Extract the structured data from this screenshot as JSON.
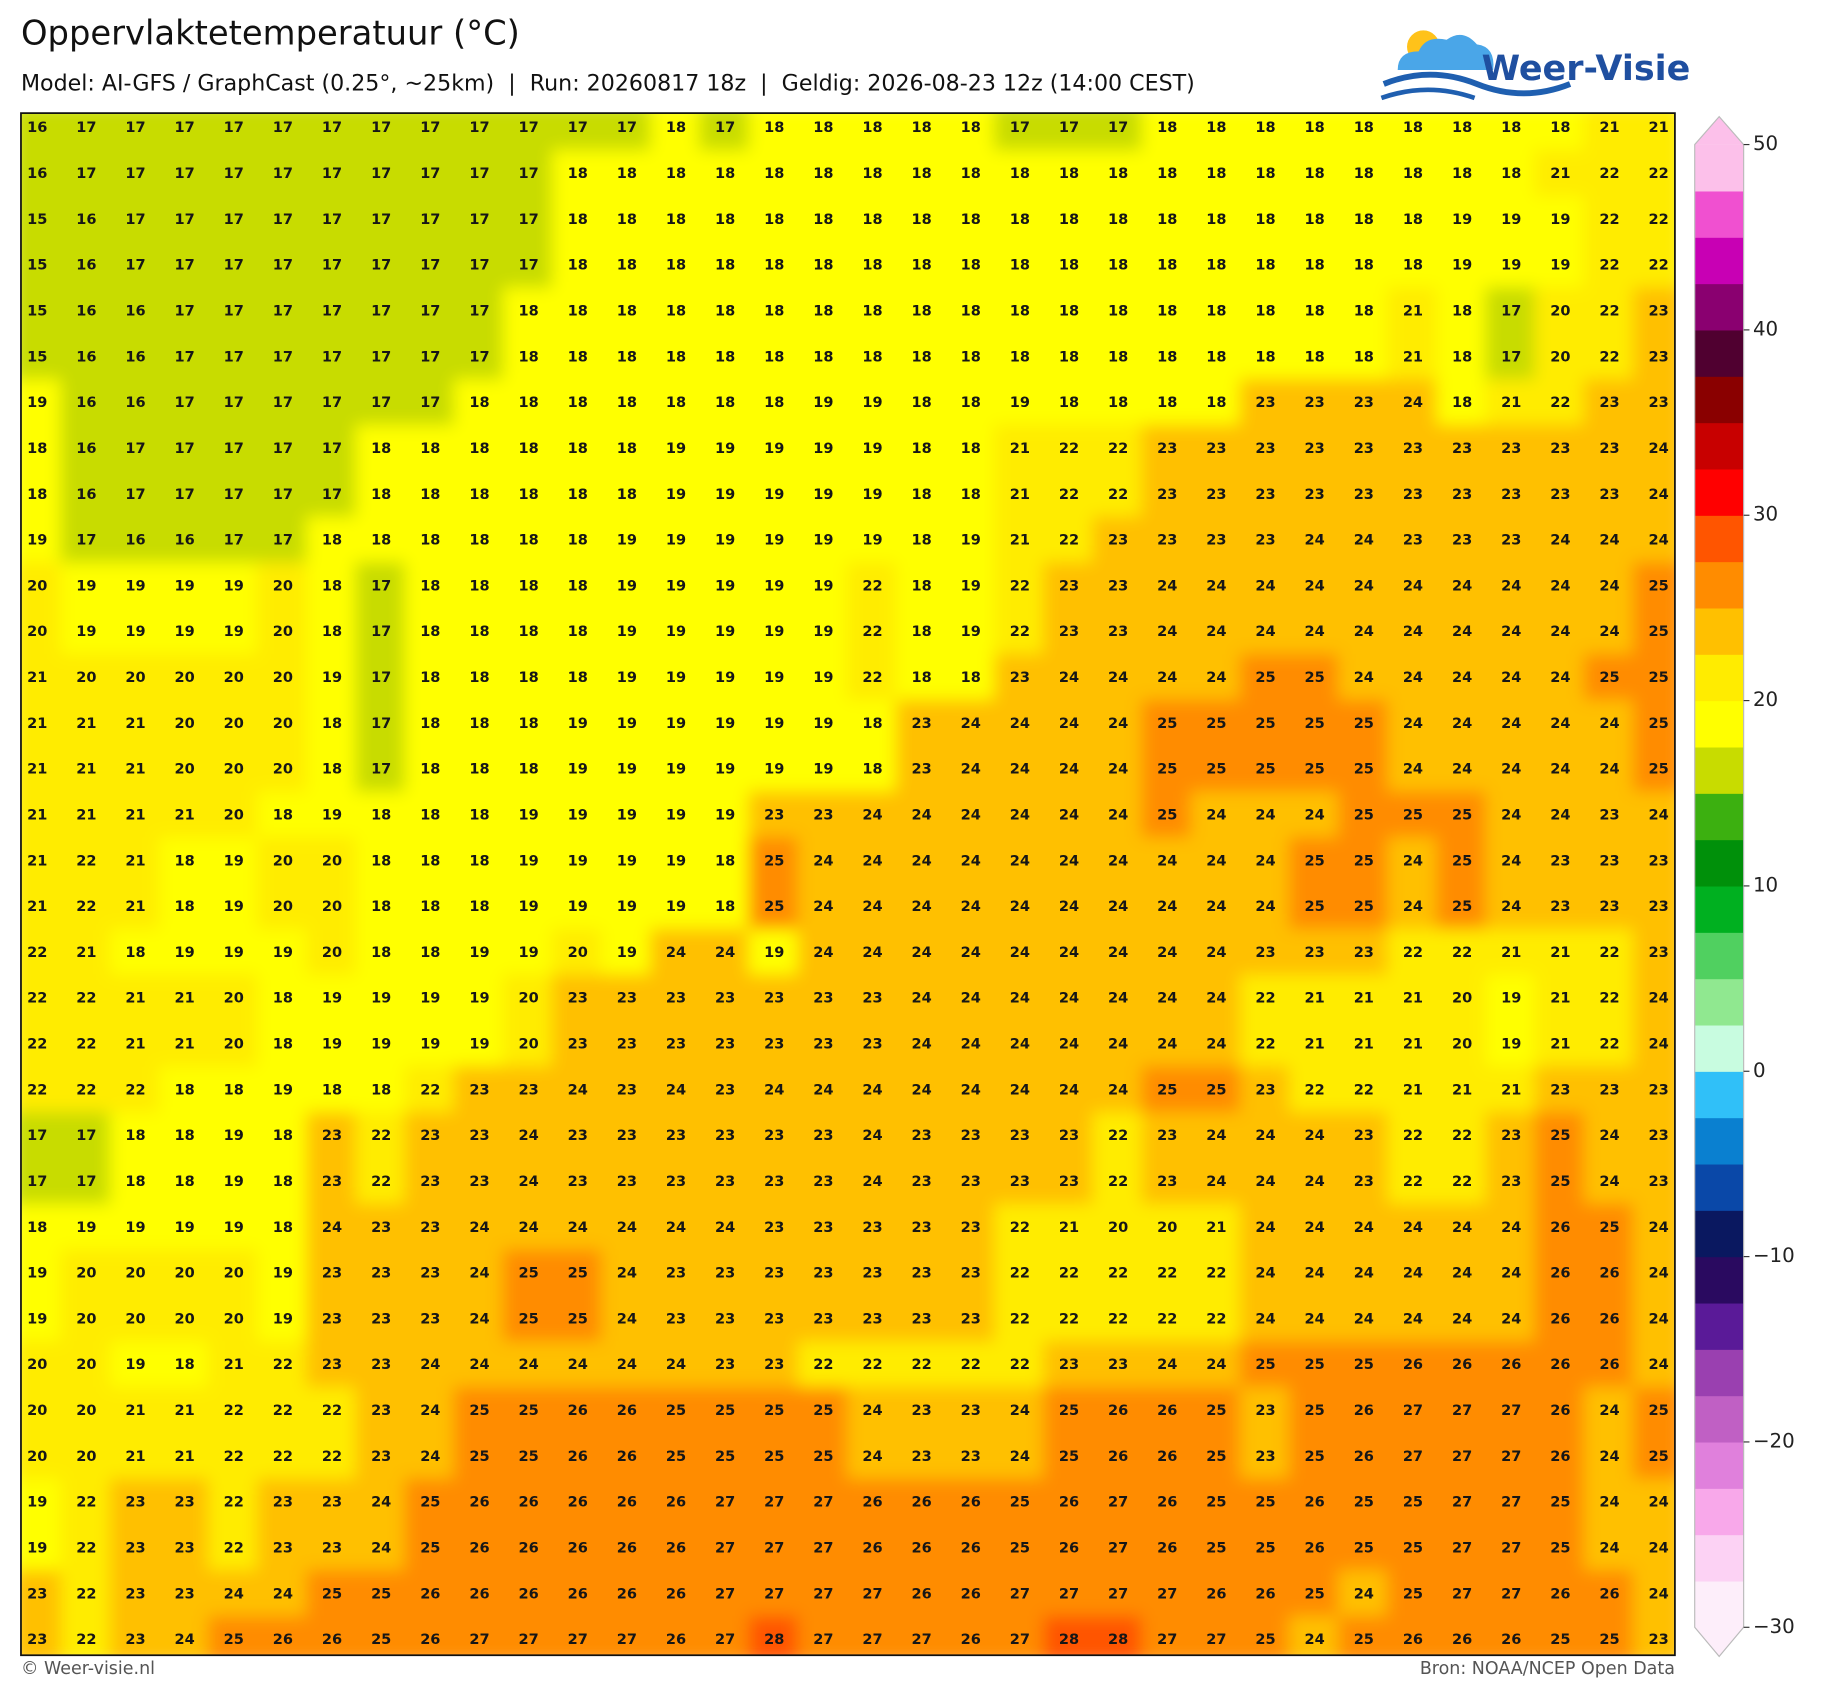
{
  "header": {
    "title": "Oppervlaktetemperatuur (°C)",
    "subtitle": "Model: AI-GFS / GraphCast (0.25°, ~25km)  |  Run: 20260817 18z  |  Geldig: 2026-08-23 12z (14:00 CEST)",
    "logo": "Weer-Visie"
  },
  "footer": {
    "left": "© Weer-visie.nl",
    "right": "Bron: NOAA/NCEP Open Data"
  },
  "colorbar": {
    "lim": [
      -30,
      50
    ],
    "ticks": [
      50,
      40,
      30,
      20,
      10,
      0,
      {
        "value": -10,
        "label": "−10"
      },
      {
        "value": -20,
        "label": "−20"
      },
      {
        "value": -30,
        "label": "−30"
      }
    ],
    "colors": [
      "#fdeefa",
      "#fcd2f4",
      "#f8a8ea",
      "#e080dc",
      "#c060c4",
      "#9a40b0",
      "#5a1a98",
      "#2a0a60",
      "#0a1860",
      "#0a48a8",
      "#0a80d0",
      "#30c0f8",
      "#c8fce0",
      "#90e890",
      "#50d060",
      "#00b020",
      "#00900a",
      "#3cb010",
      "#c8dc00",
      "#ffff00",
      "#ffec00",
      "#ffc000",
      "#ff8c00",
      "#ff5500",
      "#ff0000",
      "#c80000",
      "#8a0000",
      "#500030",
      "#8a0070",
      "#c800b4",
      "#f050d0",
      "#fcc0ea"
    ]
  },
  "map": {
    "grid": [
      [
        16,
        17,
        17,
        17,
        17,
        17,
        17,
        17,
        17,
        17,
        17,
        17,
        17,
        18,
        17,
        18,
        18,
        18,
        18,
        18,
        17,
        17,
        17,
        18,
        18,
        18,
        18,
        18,
        18,
        18,
        18,
        18,
        21,
        21
      ],
      [
        16,
        17,
        17,
        17,
        17,
        17,
        17,
        17,
        17,
        17,
        17,
        18,
        18,
        18,
        18,
        18,
        18,
        18,
        18,
        18,
        18,
        18,
        18,
        18,
        18,
        18,
        18,
        18,
        18,
        18,
        18,
        21,
        22,
        22
      ],
      [
        15,
        16,
        17,
        17,
        17,
        17,
        17,
        17,
        17,
        17,
        17,
        18,
        18,
        18,
        18,
        18,
        18,
        18,
        18,
        18,
        18,
        18,
        18,
        18,
        18,
        18,
        18,
        18,
        18,
        19,
        19,
        19,
        22,
        22
      ],
      [
        15,
        16,
        17,
        17,
        17,
        17,
        17,
        17,
        17,
        17,
        17,
        18,
        18,
        18,
        18,
        18,
        18,
        18,
        18,
        18,
        18,
        18,
        18,
        18,
        18,
        18,
        18,
        18,
        18,
        19,
        19,
        19,
        22,
        22
      ],
      [
        15,
        16,
        16,
        17,
        17,
        17,
        17,
        17,
        17,
        17,
        18,
        18,
        18,
        18,
        18,
        18,
        18,
        18,
        18,
        18,
        18,
        18,
        18,
        18,
        18,
        18,
        18,
        18,
        21,
        18,
        17,
        20,
        22,
        23
      ],
      [
        15,
        16,
        16,
        17,
        17,
        17,
        17,
        17,
        17,
        17,
        18,
        18,
        18,
        18,
        18,
        18,
        18,
        18,
        18,
        18,
        18,
        18,
        18,
        18,
        18,
        18,
        18,
        18,
        21,
        18,
        17,
        20,
        22,
        23
      ],
      [
        19,
        16,
        16,
        17,
        17,
        17,
        17,
        17,
        17,
        18,
        18,
        18,
        18,
        18,
        18,
        18,
        19,
        19,
        18,
        18,
        19,
        18,
        18,
        18,
        18,
        23,
        23,
        23,
        24,
        18,
        21,
        22,
        23,
        23
      ],
      [
        18,
        16,
        17,
        17,
        17,
        17,
        17,
        18,
        18,
        18,
        18,
        18,
        18,
        19,
        19,
        19,
        19,
        19,
        18,
        18,
        21,
        22,
        22,
        23,
        23,
        23,
        23,
        23,
        23,
        23,
        23,
        23,
        23,
        24
      ],
      [
        18,
        16,
        17,
        17,
        17,
        17,
        17,
        18,
        18,
        18,
        18,
        18,
        18,
        19,
        19,
        19,
        19,
        19,
        18,
        18,
        21,
        22,
        22,
        23,
        23,
        23,
        23,
        23,
        23,
        23,
        23,
        23,
        23,
        24
      ],
      [
        19,
        17,
        16,
        16,
        17,
        17,
        18,
        18,
        18,
        18,
        18,
        18,
        19,
        19,
        19,
        19,
        19,
        19,
        18,
        19,
        21,
        22,
        23,
        23,
        23,
        23,
        24,
        24,
        23,
        23,
        23,
        24,
        24,
        24
      ],
      [
        20,
        19,
        19,
        19,
        19,
        20,
        18,
        17,
        18,
        18,
        18,
        18,
        19,
        19,
        19,
        19,
        19,
        22,
        18,
        19,
        22,
        23,
        23,
        24,
        24,
        24,
        24,
        24,
        24,
        24,
        24,
        24,
        24,
        25
      ],
      [
        20,
        19,
        19,
        19,
        19,
        20,
        18,
        17,
        18,
        18,
        18,
        18,
        19,
        19,
        19,
        19,
        19,
        22,
        18,
        19,
        22,
        23,
        23,
        24,
        24,
        24,
        24,
        24,
        24,
        24,
        24,
        24,
        24,
        25
      ],
      [
        21,
        20,
        20,
        20,
        20,
        20,
        19,
        17,
        18,
        18,
        18,
        18,
        19,
        19,
        19,
        19,
        19,
        22,
        18,
        18,
        23,
        24,
        24,
        24,
        24,
        25,
        25,
        24,
        24,
        24,
        24,
        24,
        25,
        25
      ],
      [
        21,
        21,
        21,
        20,
        20,
        20,
        18,
        17,
        18,
        18,
        18,
        19,
        19,
        19,
        19,
        19,
        19,
        18,
        23,
        24,
        24,
        24,
        24,
        25,
        25,
        25,
        25,
        25,
        24,
        24,
        24,
        24,
        24,
        25
      ],
      [
        21,
        21,
        21,
        20,
        20,
        20,
        18,
        17,
        18,
        18,
        18,
        19,
        19,
        19,
        19,
        19,
        19,
        18,
        23,
        24,
        24,
        24,
        24,
        25,
        25,
        25,
        25,
        25,
        24,
        24,
        24,
        24,
        24,
        25
      ],
      [
        21,
        21,
        21,
        21,
        20,
        18,
        19,
        18,
        18,
        18,
        19,
        19,
        19,
        19,
        19,
        23,
        23,
        24,
        24,
        24,
        24,
        24,
        24,
        25,
        24,
        24,
        24,
        25,
        25,
        25,
        24,
        24,
        23,
        24
      ],
      [
        21,
        22,
        21,
        18,
        19,
        20,
        20,
        18,
        18,
        18,
        19,
        19,
        19,
        19,
        18,
        25,
        24,
        24,
        24,
        24,
        24,
        24,
        24,
        24,
        24,
        24,
        25,
        25,
        24,
        25,
        24,
        23,
        23,
        23
      ],
      [
        21,
        22,
        21,
        18,
        19,
        20,
        20,
        18,
        18,
        18,
        19,
        19,
        19,
        19,
        18,
        25,
        24,
        24,
        24,
        24,
        24,
        24,
        24,
        24,
        24,
        24,
        25,
        25,
        24,
        25,
        24,
        23,
        23,
        23
      ],
      [
        22,
        21,
        18,
        19,
        19,
        19,
        20,
        18,
        18,
        19,
        19,
        20,
        19,
        24,
        24,
        19,
        24,
        24,
        24,
        24,
        24,
        24,
        24,
        24,
        24,
        23,
        23,
        23,
        22,
        22,
        21,
        21,
        22,
        23
      ],
      [
        22,
        22,
        21,
        21,
        20,
        18,
        19,
        19,
        19,
        19,
        20,
        23,
        23,
        23,
        23,
        23,
        23,
        23,
        24,
        24,
        24,
        24,
        24,
        24,
        24,
        22,
        21,
        21,
        21,
        20,
        19,
        21,
        22,
        24
      ],
      [
        22,
        22,
        21,
        21,
        20,
        18,
        19,
        19,
        19,
        19,
        20,
        23,
        23,
        23,
        23,
        23,
        23,
        23,
        24,
        24,
        24,
        24,
        24,
        24,
        24,
        22,
        21,
        21,
        21,
        20,
        19,
        21,
        22,
        24
      ],
      [
        22,
        22,
        22,
        18,
        18,
        19,
        18,
        18,
        22,
        23,
        23,
        24,
        23,
        24,
        23,
        24,
        24,
        24,
        24,
        24,
        24,
        24,
        24,
        25,
        25,
        23,
        22,
        22,
        21,
        21,
        21,
        23,
        23,
        23
      ],
      [
        17,
        17,
        18,
        18,
        19,
        18,
        23,
        22,
        23,
        23,
        24,
        23,
        23,
        23,
        23,
        23,
        23,
        24,
        23,
        23,
        23,
        23,
        22,
        23,
        24,
        24,
        24,
        23,
        22,
        22,
        23,
        25,
        24,
        23
      ],
      [
        17,
        17,
        18,
        18,
        19,
        18,
        23,
        22,
        23,
        23,
        24,
        23,
        23,
        23,
        23,
        23,
        23,
        24,
        23,
        23,
        23,
        23,
        22,
        23,
        24,
        24,
        24,
        23,
        22,
        22,
        23,
        25,
        24,
        23
      ],
      [
        18,
        19,
        19,
        19,
        19,
        18,
        24,
        23,
        23,
        24,
        24,
        24,
        24,
        24,
        24,
        23,
        23,
        23,
        23,
        23,
        22,
        21,
        20,
        20,
        21,
        24,
        24,
        24,
        24,
        24,
        24,
        26,
        25,
        24
      ],
      [
        19,
        20,
        20,
        20,
        20,
        19,
        23,
        23,
        23,
        24,
        25,
        25,
        24,
        23,
        23,
        23,
        23,
        23,
        23,
        23,
        22,
        22,
        22,
        22,
        22,
        24,
        24,
        24,
        24,
        24,
        24,
        26,
        26,
        24
      ],
      [
        19,
        20,
        20,
        20,
        20,
        19,
        23,
        23,
        23,
        24,
        25,
        25,
        24,
        23,
        23,
        23,
        23,
        23,
        23,
        23,
        22,
        22,
        22,
        22,
        22,
        24,
        24,
        24,
        24,
        24,
        24,
        26,
        26,
        24
      ],
      [
        20,
        20,
        19,
        18,
        21,
        22,
        23,
        23,
        24,
        24,
        24,
        24,
        24,
        24,
        23,
        23,
        22,
        22,
        22,
        22,
        22,
        23,
        23,
        24,
        24,
        25,
        25,
        25,
        26,
        26,
        26,
        26,
        26,
        24
      ],
      [
        20,
        20,
        21,
        21,
        22,
        22,
        22,
        23,
        24,
        25,
        25,
        26,
        26,
        25,
        25,
        25,
        25,
        24,
        23,
        23,
        24,
        25,
        26,
        26,
        25,
        23,
        25,
        26,
        27,
        27,
        27,
        26,
        24,
        25
      ],
      [
        20,
        20,
        21,
        21,
        22,
        22,
        22,
        23,
        24,
        25,
        25,
        26,
        26,
        25,
        25,
        25,
        25,
        24,
        23,
        23,
        24,
        25,
        26,
        26,
        25,
        23,
        25,
        26,
        27,
        27,
        27,
        26,
        24,
        25
      ],
      [
        19,
        22,
        23,
        23,
        22,
        23,
        23,
        24,
        25,
        26,
        26,
        26,
        26,
        26,
        27,
        27,
        27,
        26,
        26,
        26,
        25,
        26,
        27,
        26,
        25,
        25,
        26,
        25,
        25,
        27,
        27,
        25,
        24,
        24
      ],
      [
        19,
        22,
        23,
        23,
        22,
        23,
        23,
        24,
        25,
        26,
        26,
        26,
        26,
        26,
        27,
        27,
        27,
        26,
        26,
        26,
        25,
        26,
        27,
        26,
        25,
        25,
        26,
        25,
        25,
        27,
        27,
        25,
        24,
        24
      ],
      [
        23,
        22,
        23,
        23,
        24,
        24,
        25,
        25,
        26,
        26,
        26,
        26,
        26,
        26,
        27,
        27,
        27,
        27,
        26,
        26,
        27,
        27,
        27,
        27,
        26,
        26,
        25,
        24,
        25,
        27,
        27,
        26,
        26,
        24
      ],
      [
        23,
        22,
        23,
        24,
        25,
        26,
        26,
        25,
        26,
        27,
        27,
        27,
        27,
        26,
        27,
        28,
        27,
        27,
        27,
        26,
        27,
        28,
        28,
        27,
        27,
        25,
        24,
        25,
        26,
        26,
        26,
        25,
        25,
        23
      ]
    ]
  }
}
